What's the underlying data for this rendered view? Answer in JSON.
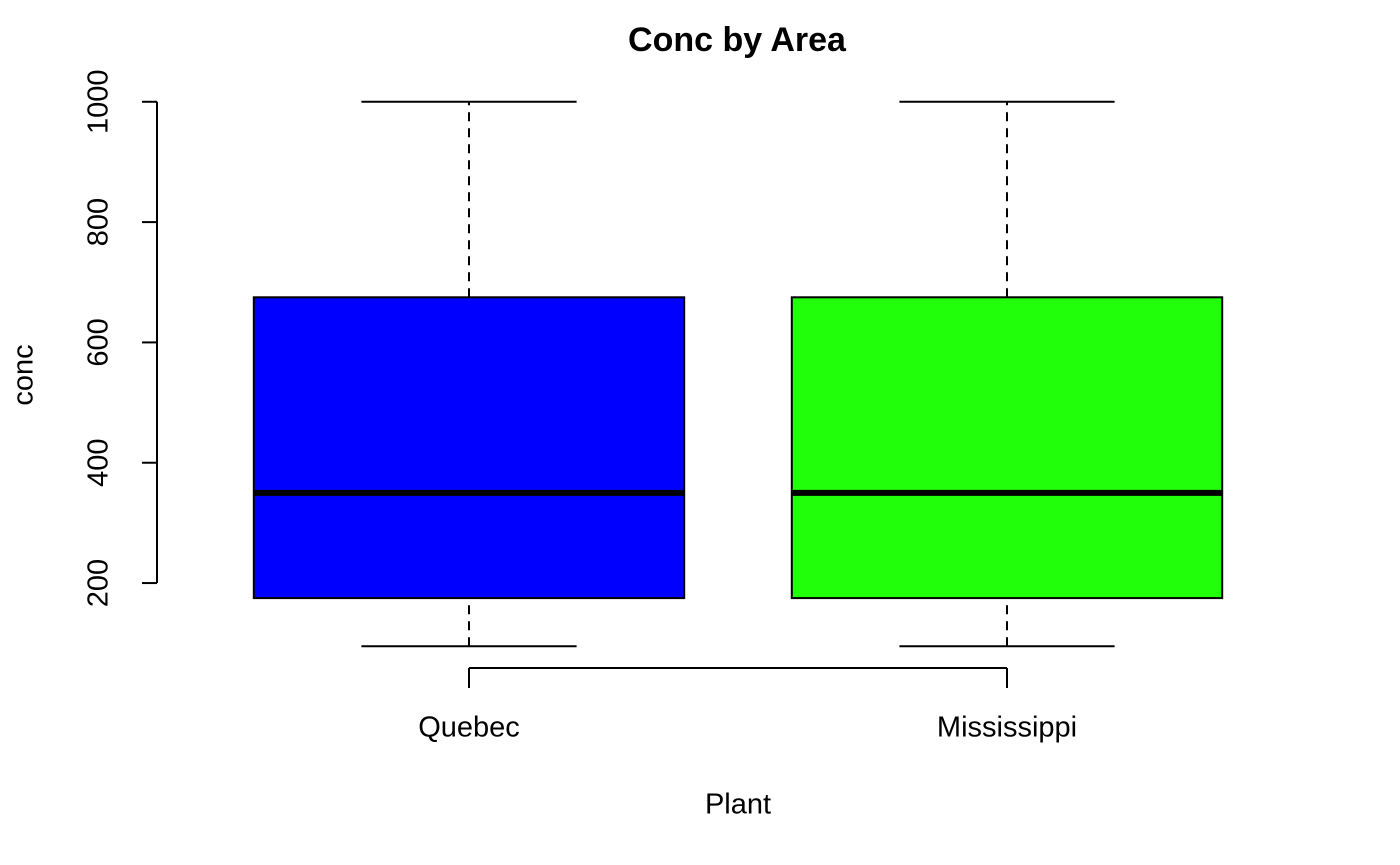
{
  "chart_data": {
    "type": "box",
    "title": "Conc by Area",
    "x_label": "Plant",
    "y_label": "conc",
    "categories": [
      "Quebec",
      "Mississippi"
    ],
    "colors": [
      "#0000ff",
      "#22ff0a"
    ],
    "min": [
      95,
      95
    ],
    "q1": [
      175,
      175
    ],
    "median": [
      350,
      350
    ],
    "q3": [
      675,
      675
    ],
    "max": [
      1000,
      1000
    ],
    "ylim": [
      58.8,
      1036.2
    ],
    "yticks": [
      200,
      400,
      600,
      800,
      1000
    ]
  }
}
